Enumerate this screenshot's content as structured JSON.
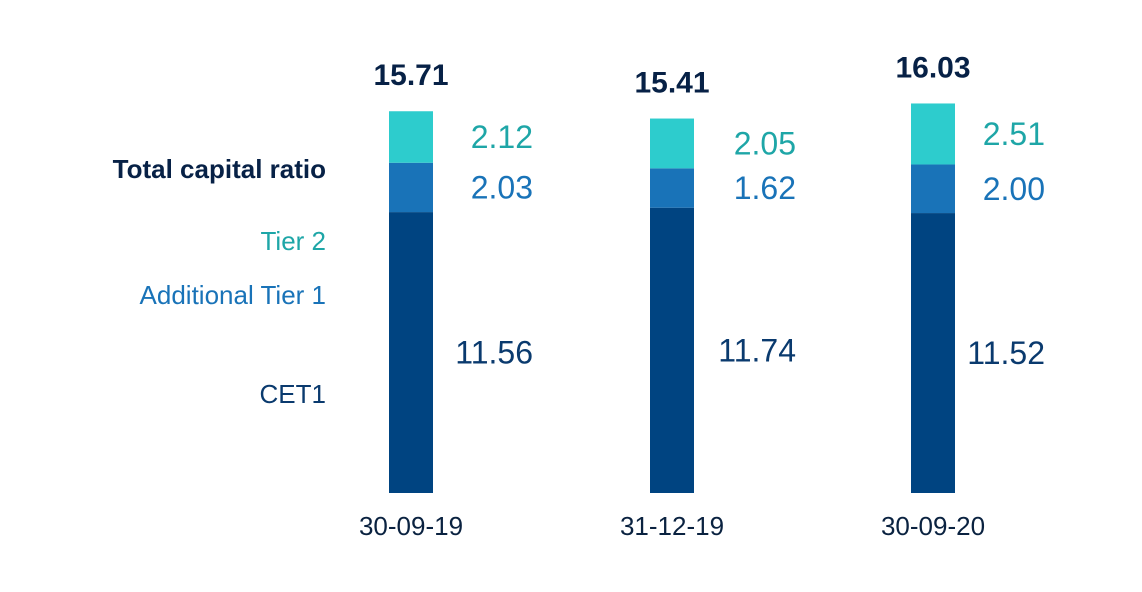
{
  "chart_data": {
    "type": "bar",
    "stacked": true,
    "categories": [
      "30-09-19",
      "31-12-19",
      "30-09-20"
    ],
    "series": [
      {
        "name": "CET1",
        "values": [
          11.56,
          11.74,
          11.52
        ],
        "value_labels": [
          "11.56",
          "11.74",
          "11.52"
        ],
        "color": "#004481"
      },
      {
        "name": "Additional Tier  1",
        "values": [
          2.03,
          1.62,
          2.0
        ],
        "value_labels": [
          "2.03",
          "1.62",
          "2.00"
        ],
        "color": "#1973b8"
      },
      {
        "name": "Tier 2",
        "values": [
          2.12,
          2.05,
          2.51
        ],
        "value_labels": [
          "2.12",
          "2.05",
          "2.51"
        ],
        "color": "#2dcccd"
      }
    ],
    "totals": {
      "name": "Total capital ratio",
      "values": [
        15.71,
        15.41,
        16.03
      ],
      "value_labels": [
        "15.71",
        "15.41",
        "16.03"
      ],
      "color": "#072146"
    },
    "title": "",
    "xlabel": "",
    "ylabel": "",
    "ylim": [
      0,
      16.5
    ],
    "grid": false,
    "legend": "left"
  },
  "colors": {
    "tier2_text": "#1ea6a7",
    "at1_text": "#1973b8",
    "cet1_text": "#0a3a6e",
    "category_text": "#0a2240"
  }
}
